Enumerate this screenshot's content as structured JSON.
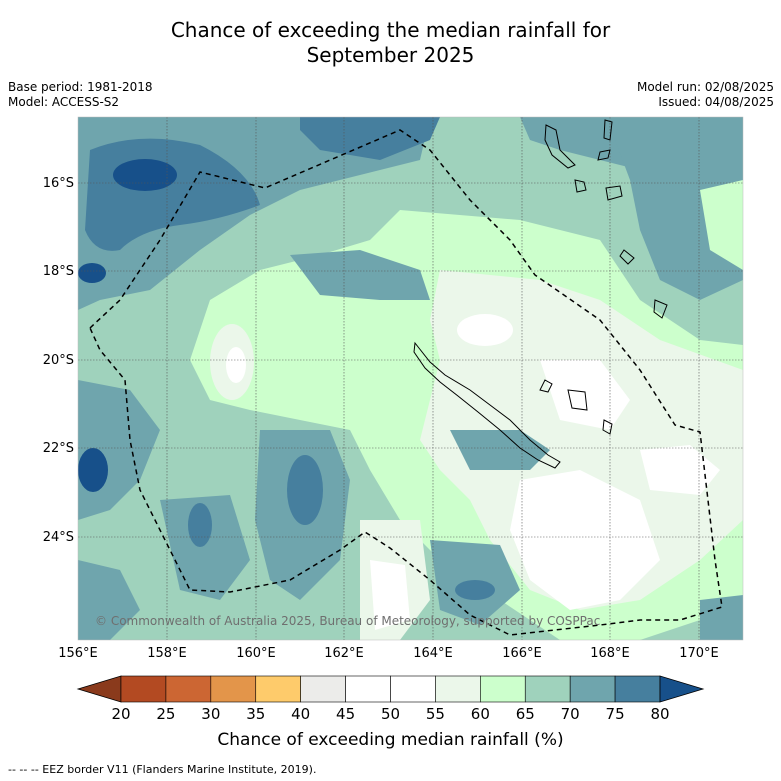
{
  "title_line1": "Chance of exceeding the median rainfall for",
  "title_line2": "September 2025",
  "meta": {
    "base_period": "Base period: 1981-2018",
    "model": "Model: ACCESS-S2",
    "model_run": "Model run: 02/08/2025",
    "issued": "Issued: 04/08/2025"
  },
  "copyright": "© Commonwealth of Australia 2025, Bureau of Meteorology, supported by COSPPac",
  "lat_labels": [
    "16°S",
    "18°S",
    "20°S",
    "22°S",
    "24°S"
  ],
  "lon_labels": [
    "156°E",
    "158°E",
    "160°E",
    "162°E",
    "164°E",
    "166°E",
    "168°E",
    "170°E"
  ],
  "colorbar": {
    "ticks": [
      "20",
      "25",
      "30",
      "35",
      "40",
      "45",
      "50",
      "55",
      "60",
      "65",
      "70",
      "75",
      "80"
    ],
    "colors": [
      "#8a3a1c",
      "#b34a22",
      "#cc6633",
      "#e3954a",
      "#fecb6b",
      "#ececea",
      "#ffffff",
      "#ffffff",
      "#ebf7ea",
      "#ccffcc",
      "#9fd2bc",
      "#6fa5ad",
      "#467f9e",
      "#17508a"
    ],
    "label": "Chance of exceeding median rainfall (%)"
  },
  "legend_note": "--  --  -- EEZ border V11 (Flanders Marine Institute, 2019)."
}
